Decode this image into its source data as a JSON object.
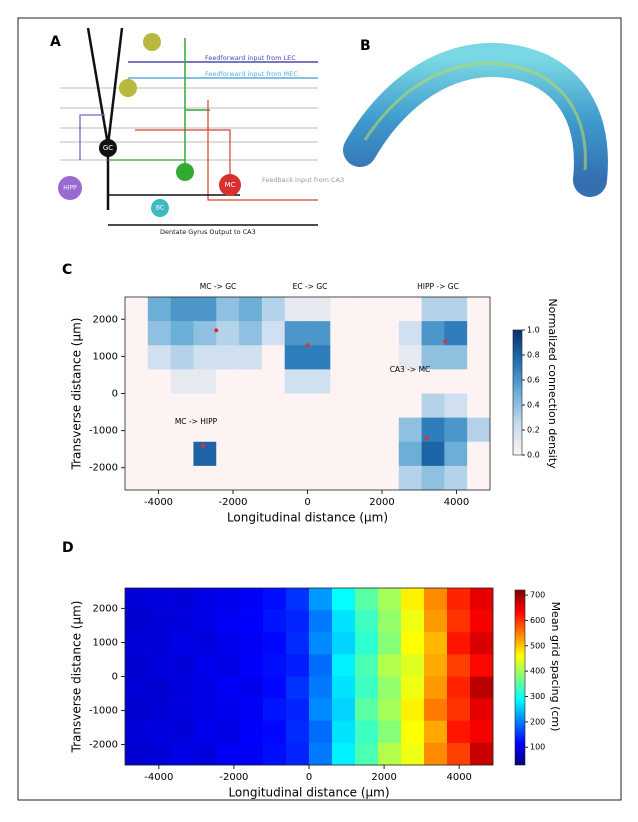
{
  "figure": {
    "panel_a": {
      "label": "A",
      "lec": "Feedforward input from LEC",
      "mec": "Feedforward input from MEC",
      "gc": "GC",
      "hipp": "HIPP",
      "mc": "MC",
      "bc": "BC",
      "feedback": "Feedback input from CA3",
      "output": "Dentate Gyrus Output to CA3"
    },
    "panel_b": {
      "label": "B"
    }
  },
  "chart_data": [
    {
      "type": "heatmap",
      "title": "C",
      "xlabel": "Longitudinal distance (µm)",
      "ylabel": "Transverse distance (µm)",
      "xlim": [
        -4900,
        4900
      ],
      "ylim": [
        -2600,
        2600
      ],
      "xticks": [
        -4000,
        -2000,
        0,
        2000,
        4000
      ],
      "yticks": [
        -2000,
        -1000,
        0,
        1000,
        2000
      ],
      "z": [
        [
          0,
          0.5,
          0.6,
          0.6,
          0.4,
          0.5,
          0.3,
          0.1,
          0.1,
          0,
          0,
          0,
          0,
          0.3,
          0.3,
          0
        ],
        [
          0,
          0.4,
          0.5,
          0.4,
          0.3,
          0.4,
          0.2,
          0.6,
          0.6,
          0,
          0,
          0,
          0.2,
          0.6,
          0.7,
          0
        ],
        [
          0,
          0.2,
          0.3,
          0.2,
          0.2,
          0.2,
          0,
          0.7,
          0.7,
          0,
          0,
          0,
          0.1,
          0.4,
          0.4,
          0
        ],
        [
          0,
          0,
          0.1,
          0.1,
          0,
          0,
          0,
          0.2,
          0.2,
          0,
          0,
          0,
          0,
          0,
          0,
          0
        ],
        [
          0,
          0,
          0,
          0,
          0,
          0,
          0,
          0,
          0,
          0,
          0,
          0,
          0,
          0.3,
          0.2,
          0
        ],
        [
          0,
          0,
          0,
          0,
          0,
          0,
          0,
          0,
          0,
          0,
          0,
          0,
          0.4,
          0.7,
          0.6,
          0.3
        ],
        [
          0,
          0,
          0,
          0.8,
          0,
          0,
          0,
          0,
          0,
          0,
          0,
          0,
          0.5,
          0.8,
          0.5,
          0
        ],
        [
          0,
          0,
          0,
          0,
          0,
          0,
          0,
          0,
          0,
          0,
          0,
          0,
          0.3,
          0.4,
          0.3,
          0
        ]
      ],
      "annotations": [
        "MC -> GC",
        "EC -> GC",
        "HIPP -> GC",
        "CA3 -> MC",
        "MC -> HIPP"
      ],
      "markers": {
        "x": [
          -2450,
          0,
          3700,
          3200,
          -2800
        ],
        "y": [
          1700,
          1300,
          1400,
          -1200,
          -1400
        ],
        "color": "#e03030"
      },
      "colorbar": {
        "label": "Normalized connection density",
        "lim": [
          0,
          1
        ],
        "ticks": [
          {
            "value": 0,
            "label": "0.0"
          },
          {
            "value": 0.2,
            "label": "0.2"
          },
          {
            "value": 0.4,
            "label": "0.4"
          },
          {
            "value": 0.6,
            "label": "0.6"
          },
          {
            "value": 0.8,
            "label": "0.8"
          },
          {
            "value": 1,
            "label": "1.0"
          }
        ],
        "colormap": [
          "#fdf3f3",
          "#c6dbef",
          "#6baed6",
          "#2171b5",
          "#08306b"
        ]
      }
    },
    {
      "type": "heatmap",
      "title": "D",
      "xlabel": "Longitudinal distance (µm)",
      "ylabel": "Transverse distance (µm)",
      "xlim": [
        -4900,
        4900
      ],
      "ylim": [
        -2600,
        2600
      ],
      "xticks": [
        -4000,
        -2000,
        0,
        2000,
        4000
      ],
      "yticks": [
        -2000,
        -1000,
        0,
        1000,
        2000
      ],
      "z": [
        [
          90,
          95,
          90,
          100,
          105,
          110,
          125,
          150,
          220,
          290,
          350,
          400,
          470,
          540,
          610,
          650
        ],
        [
          85,
          90,
          95,
          100,
          110,
          115,
          130,
          140,
          200,
          270,
          330,
          390,
          450,
          530,
          600,
          640
        ],
        [
          90,
          90,
          100,
          95,
          105,
          110,
          120,
          145,
          210,
          260,
          320,
          380,
          460,
          510,
          620,
          660
        ],
        [
          85,
          95,
          90,
          105,
          100,
          115,
          125,
          135,
          190,
          280,
          340,
          410,
          440,
          520,
          590,
          630
        ],
        [
          90,
          85,
          95,
          100,
          110,
          105,
          120,
          150,
          200,
          270,
          330,
          390,
          450,
          530,
          610,
          680
        ],
        [
          85,
          90,
          95,
          100,
          105,
          110,
          130,
          140,
          210,
          260,
          350,
          400,
          470,
          550,
          600,
          650
        ],
        [
          90,
          95,
          90,
          105,
          100,
          115,
          120,
          145,
          190,
          270,
          330,
          380,
          460,
          520,
          620,
          640
        ],
        [
          85,
          90,
          100,
          95,
          110,
          110,
          125,
          140,
          200,
          280,
          340,
          410,
          450,
          540,
          590,
          670
        ]
      ],
      "colorbar": {
        "label": "Mean grid spacing (cm)",
        "lim": [
          30,
          720
        ],
        "ticks": [
          100,
          200,
          300,
          400,
          500,
          600,
          700
        ],
        "colormap": [
          "#00007f",
          "#0000ff",
          "#007fff",
          "#00ffff",
          "#7fff7f",
          "#ffff00",
          "#ff7f00",
          "#ff0000",
          "#7f0000"
        ]
      }
    }
  ]
}
